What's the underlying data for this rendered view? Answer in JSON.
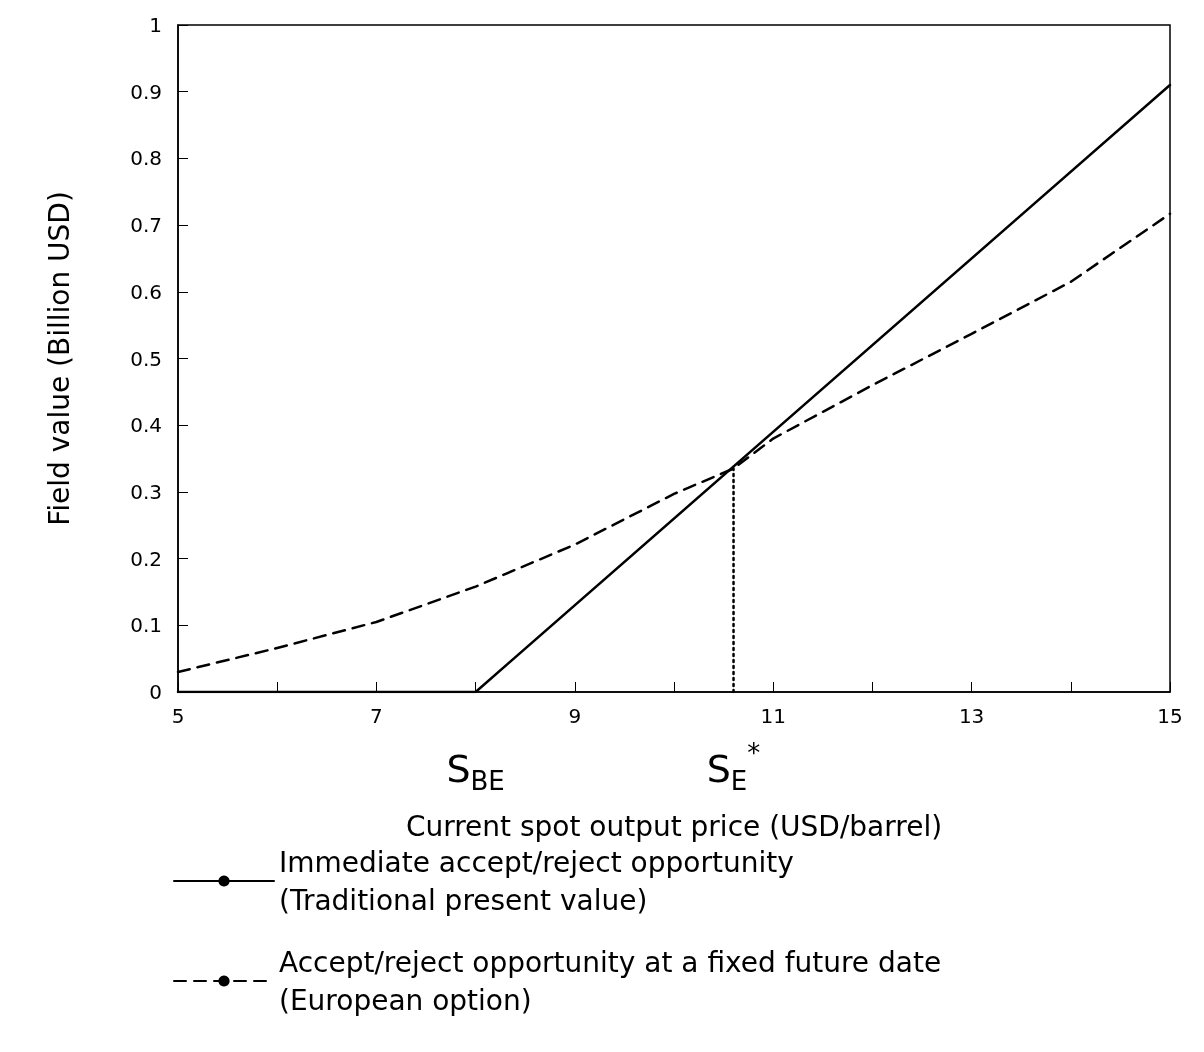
{
  "chart_data": {
    "type": "line",
    "xlabel": "Current spot output price (USD/barrel)",
    "ylabel": "Field value (Billion USD)",
    "xlim": [
      5,
      15
    ],
    "xticks": [
      5,
      {
        "value": 6,
        "label": null
      },
      7,
      {
        "value": 8,
        "label": null
      },
      9,
      {
        "value": 10,
        "label": null
      },
      11,
      {
        "value": 12,
        "label": null
      },
      13,
      {
        "value": 14,
        "label": null
      },
      15
    ],
    "ylim": [
      0,
      1
    ],
    "yticks": [
      0,
      0.1,
      0.2,
      0.3,
      0.4,
      0.5,
      0.6,
      0.7,
      0.8,
      0.9,
      1
    ],
    "grid": false,
    "legend": "bottom",
    "marker": "none",
    "series": [
      {
        "name": "Immediate accept/reject opportunity\n(Traditional present value)",
        "color": "#000000",
        "line_style": "solid",
        "x": [
          5,
          8,
          15
        ],
        "values": [
          0,
          0,
          0.91
        ]
      },
      {
        "name": "Accept/reject opportunity at a fixed future date\n(European option)",
        "color": "#000000",
        "line_style": "dashed",
        "x": [
          5,
          6,
          7,
          8,
          9,
          10,
          10.6,
          11,
          12,
          13,
          14,
          15
        ],
        "values": [
          0.03,
          0.066,
          0.105,
          0.158,
          0.221,
          0.297,
          0.335,
          0.38,
          0.46,
          0.537,
          0.615,
          0.717
        ]
      },
      {
        "color": "#000000",
        "line_style": "dotted",
        "x": [
          10.6,
          10.6
        ],
        "values": [
          0,
          0.335
        ]
      }
    ],
    "annotations": [
      {
        "text": "S$_{BE}$",
        "x": 8,
        "y": 0
      },
      {
        "text": "S$_{E}$$^{*}$",
        "x": 10.6,
        "y": 0
      }
    ]
  }
}
